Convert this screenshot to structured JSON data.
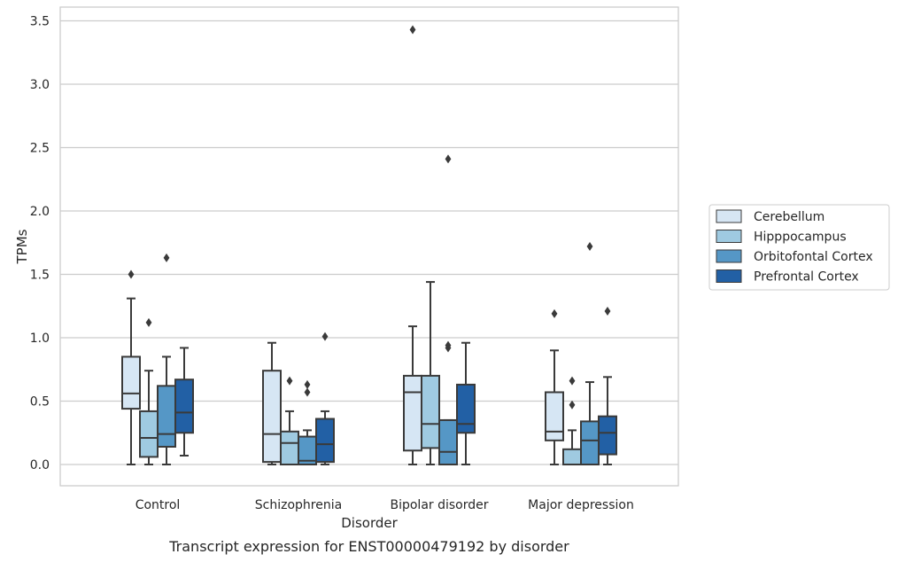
{
  "caption": "Transcript expression for ENST00000479192 by disorder",
  "chart_data": {
    "type": "box",
    "xlabel": "Disorder",
    "ylabel": "TPMs",
    "ylim": [
      -0.17,
      3.6
    ],
    "y_ticks": [
      "0.0",
      "0.5",
      "1.0",
      "1.5",
      "2.0",
      "2.5",
      "3.0",
      "3.5"
    ],
    "grid": "horizontal",
    "legend_position": "right",
    "categories": [
      "Control",
      "Schizophrenia",
      "Bipolar disorder",
      "Major depression"
    ],
    "series": [
      {
        "name": "Cerebellum",
        "color": "#d6e6f4",
        "boxes": [
          {
            "whislo": 0.0,
            "q1": 0.44,
            "med": 0.56,
            "q3": 0.85,
            "whishi": 1.31,
            "fliers": [
              1.5
            ]
          },
          {
            "whislo": 0.0,
            "q1": 0.02,
            "med": 0.24,
            "q3": 0.74,
            "whishi": 0.96,
            "fliers": []
          },
          {
            "whislo": 0.0,
            "q1": 0.11,
            "med": 0.57,
            "q3": 0.7,
            "whishi": 1.09,
            "fliers": [
              3.43
            ]
          },
          {
            "whislo": 0.0,
            "q1": 0.19,
            "med": 0.26,
            "q3": 0.57,
            "whishi": 0.9,
            "fliers": [
              1.19
            ]
          }
        ]
      },
      {
        "name": "Hipppocampus",
        "color": "#9fcae1",
        "boxes": [
          {
            "whislo": 0.0,
            "q1": 0.06,
            "med": 0.21,
            "q3": 0.42,
            "whishi": 0.74,
            "fliers": [
              1.12
            ]
          },
          {
            "whislo": 0.0,
            "q1": 0.0,
            "med": 0.17,
            "q3": 0.26,
            "whishi": 0.42,
            "fliers": [
              0.66
            ]
          },
          {
            "whislo": 0.0,
            "q1": 0.13,
            "med": 0.32,
            "q3": 0.7,
            "whishi": 1.44,
            "fliers": []
          },
          {
            "whislo": 0.0,
            "q1": 0.0,
            "med": 0.0,
            "q3": 0.12,
            "whishi": 0.27,
            "fliers": [
              0.47,
              0.66
            ]
          }
        ]
      },
      {
        "name": "Orbitofontal Cortex",
        "color": "#5597c6",
        "boxes": [
          {
            "whislo": 0.0,
            "q1": 0.14,
            "med": 0.24,
            "q3": 0.62,
            "whishi": 0.85,
            "fliers": [
              1.63
            ]
          },
          {
            "whislo": 0.0,
            "q1": 0.0,
            "med": 0.03,
            "q3": 0.22,
            "whishi": 0.27,
            "fliers": [
              0.57,
              0.63
            ]
          },
          {
            "whislo": 0.0,
            "q1": 0.0,
            "med": 0.1,
            "q3": 0.35,
            "whishi": 0.35,
            "fliers": [
              0.92,
              0.94,
              2.41
            ]
          },
          {
            "whislo": 0.0,
            "q1": 0.0,
            "med": 0.19,
            "q3": 0.34,
            "whishi": 0.65,
            "fliers": [
              1.72
            ]
          }
        ]
      },
      {
        "name": "Prefrontal Cortex",
        "color": "#2260a5",
        "boxes": [
          {
            "whislo": 0.07,
            "q1": 0.25,
            "med": 0.41,
            "q3": 0.67,
            "whishi": 0.92,
            "fliers": []
          },
          {
            "whislo": 0.0,
            "q1": 0.02,
            "med": 0.16,
            "q3": 0.36,
            "whishi": 0.42,
            "fliers": [
              1.01
            ]
          },
          {
            "whislo": 0.0,
            "q1": 0.25,
            "med": 0.32,
            "q3": 0.63,
            "whishi": 0.96,
            "fliers": []
          },
          {
            "whislo": 0.0,
            "q1": 0.08,
            "med": 0.25,
            "q3": 0.38,
            "whishi": 0.69,
            "fliers": [
              1.21
            ]
          }
        ]
      }
    ]
  }
}
